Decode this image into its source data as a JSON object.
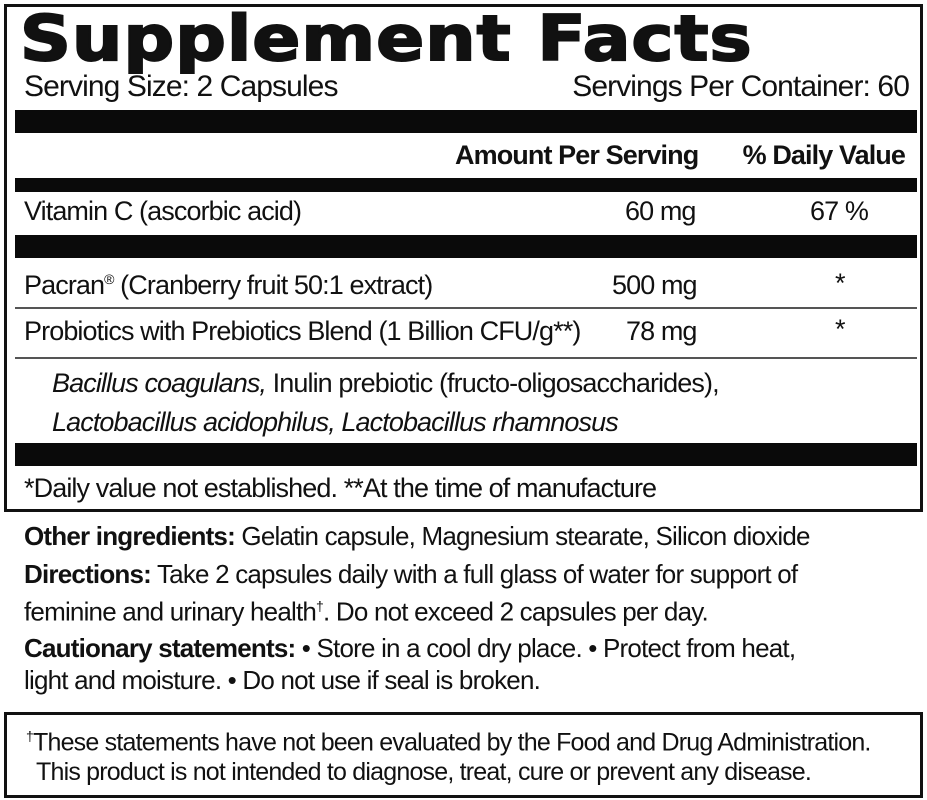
{
  "title": "Supplement Facts",
  "serving_size": "Serving Size:  2 Capsules",
  "servings_per_container": "Servings Per Container: 60",
  "header": {
    "amount": "Amount Per Serving",
    "dv": "% Daily Value"
  },
  "rows": [
    {
      "name": "Vitamin C (ascorbic acid)",
      "amount": "60 mg",
      "dv": "67 %"
    },
    {
      "name": "Pacran",
      "name_sup": "®",
      "name_rest": " (Cranberry fruit 50:1 extract)",
      "amount": "500 mg",
      "dv": "*"
    },
    {
      "name": "Probiotics with Prebiotics Blend (1 Billion CFU/g**)",
      "amount": "78 mg",
      "dv": "*"
    }
  ],
  "blend": {
    "italic1": "Bacillus coagulans,",
    "text1": " Inulin prebiotic (fructo-oligosaccharides),",
    "italic2": "Lactobacillus acidophilus, Lactobacillus rhamnosus"
  },
  "footnote": "*Daily value not established. **At the time of manufacture",
  "other_ingredients": {
    "label": "Other ingredients:",
    "text": " Gelatin capsule, Magnesium stearate, Silicon dioxide"
  },
  "directions": {
    "label": "Directions:",
    "text1": " Take 2 capsules daily with a full glass of water for support of",
    "text2": "feminine and urinary health",
    "dagger": "†",
    "text3": ". Do not exceed 2 capsules per day."
  },
  "cautionary": {
    "label": "Cautionary statements:",
    "text1": " • Store in a cool dry place.  • Protect from heat,",
    "text2": "light and moisture.  • Do not use if seal is broken."
  },
  "disclaimer": {
    "dagger": "†",
    "line1": "These statements have not been evaluated by the Food and Drug Administration.",
    "line2": "This product is not intended to diagnose, treat, cure or prevent any disease."
  }
}
